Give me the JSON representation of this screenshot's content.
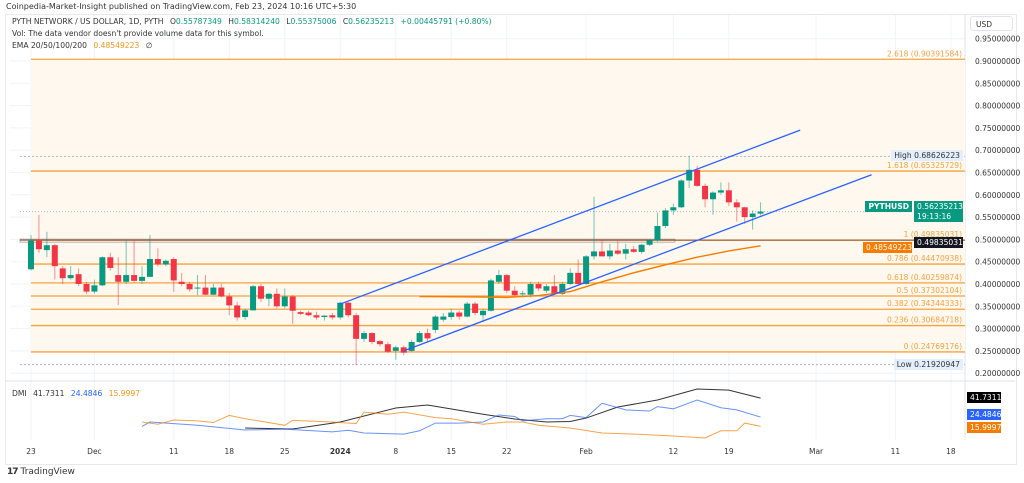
{
  "publisher_line": "Coinpedia-Market-Insight published on TradingView.com, Feb 23, 2024 10:16 UTC+5:30",
  "legend": {
    "symbol": "PYTH NETWORK / US DOLLAR, 1D, PYTH",
    "open_label": "O",
    "open": "0.55787349",
    "high_label": "H",
    "high": "0.58314240",
    "low_label": "L",
    "low": "0.55375006",
    "close_label": "C",
    "close": "0.56235213",
    "change": "+0.00445791 (+0.80%)",
    "vol_note": "Vol: The data vendor doesn't provide volume data for this symbol.",
    "ema_label": "EMA 20/50/100/200",
    "ema_value": "0.48549223",
    "ema_extra": "∅"
  },
  "currency_button": "USD",
  "price_tags": {
    "high_label": "High",
    "high_value": "0.68626223",
    "symbol": "PYTHUSD",
    "last_price": "0.56235213",
    "countdown": "19:13:16",
    "level_line": "0.49835031",
    "ema": "0.48549223",
    "low_label": "Low",
    "low_value": "0.21920947"
  },
  "dmi": {
    "label": "DMI",
    "adx": "41.7311",
    "plus_di": "24.4846",
    "minus_di": "15.9997"
  },
  "colors": {
    "up": "#089981",
    "down": "#f23645",
    "fib": "#f7a13e",
    "channel": "#2962ff",
    "ema": "#f57c00",
    "adx": "#000000",
    "plus_di": "#2962ff",
    "minus_di": "#f57c00"
  },
  "branding": "TradingView",
  "chart_data": {
    "type": "candlestick",
    "symbol": "PYTHUSD",
    "interval": "1D",
    "first_date": "2023-11-23",
    "ylim": [
      0.19,
      0.96
    ],
    "grid": true,
    "y_ticks": [
      "0.95000000",
      "0.90000000",
      "0.85000000",
      "0.80000000",
      "0.75000000",
      "0.70000000",
      "0.65000000",
      "0.60000000",
      "0.55000000",
      "0.50000000",
      "0.45000000",
      "0.40000000",
      "0.35000000",
      "0.30000000",
      "0.25000000",
      "0.20000000"
    ],
    "x_ticks": [
      {
        "label": "23",
        "date": "2023-11-23"
      },
      {
        "label": "Dec",
        "date": "2023-12-01"
      },
      {
        "label": "11",
        "date": "2023-12-11"
      },
      {
        "label": "18",
        "date": "2023-12-18"
      },
      {
        "label": "25",
        "date": "2023-12-25"
      },
      {
        "label": "2024",
        "date": "2024-01-01",
        "bold": true
      },
      {
        "label": "8",
        "date": "2024-01-08"
      },
      {
        "label": "15",
        "date": "2024-01-15"
      },
      {
        "label": "22",
        "date": "2024-01-22"
      },
      {
        "label": "Feb",
        "date": "2024-02-01"
      },
      {
        "label": "12",
        "date": "2024-02-12"
      },
      {
        "label": "19",
        "date": "2024-02-19"
      },
      {
        "label": "Mar",
        "date": "2024-03-01"
      },
      {
        "label": "11",
        "date": "2024-03-11"
      },
      {
        "label": "18",
        "date": "2024-03-18"
      }
    ],
    "ohlc": [
      [
        0.433,
        0.51,
        0.43,
        0.497
      ],
      [
        0.497,
        0.555,
        0.47,
        0.478
      ],
      [
        0.476,
        0.517,
        0.46,
        0.487
      ],
      [
        0.487,
        0.49,
        0.41,
        0.44
      ],
      [
        0.435,
        0.44,
        0.4,
        0.413
      ],
      [
        0.413,
        0.44,
        0.41,
        0.42
      ],
      [
        0.422,
        0.435,
        0.395,
        0.4
      ],
      [
        0.4,
        0.405,
        0.378,
        0.383
      ],
      [
        0.383,
        0.41,
        0.378,
        0.397
      ],
      [
        0.397,
        0.462,
        0.395,
        0.46
      ],
      [
        0.46,
        0.47,
        0.43,
        0.436
      ],
      [
        0.42,
        0.46,
        0.353,
        0.405
      ],
      [
        0.405,
        0.5,
        0.4,
        0.42
      ],
      [
        0.42,
        0.5,
        0.405,
        0.407
      ],
      [
        0.407,
        0.44,
        0.4,
        0.416
      ],
      [
        0.416,
        0.51,
        0.416,
        0.456
      ],
      [
        0.456,
        0.48,
        0.44,
        0.444
      ],
      [
        0.444,
        0.455,
        0.44,
        0.452
      ],
      [
        0.456,
        0.46,
        0.382,
        0.408
      ],
      [
        0.405,
        0.425,
        0.395,
        0.4
      ],
      [
        0.4,
        0.405,
        0.383,
        0.388
      ],
      [
        0.39,
        0.42,
        0.375,
        0.392
      ],
      [
        0.392,
        0.42,
        0.375,
        0.376
      ],
      [
        0.376,
        0.4,
        0.375,
        0.392
      ],
      [
        0.392,
        0.4,
        0.37,
        0.372
      ],
      [
        0.372,
        0.38,
        0.33,
        0.352
      ],
      [
        0.352,
        0.36,
        0.318,
        0.325
      ],
      [
        0.326,
        0.345,
        0.32,
        0.341
      ],
      [
        0.341,
        0.398,
        0.34,
        0.395
      ],
      [
        0.395,
        0.4,
        0.36,
        0.367
      ],
      [
        0.367,
        0.38,
        0.35,
        0.378
      ],
      [
        0.378,
        0.39,
        0.345,
        0.35
      ],
      [
        0.35,
        0.39,
        0.345,
        0.372
      ],
      [
        0.372,
        0.375,
        0.31,
        0.34
      ],
      [
        0.337,
        0.34,
        0.33,
        0.333
      ],
      [
        0.336,
        0.34,
        0.328,
        0.33
      ],
      [
        0.33,
        0.338,
        0.32,
        0.325
      ],
      [
        0.326,
        0.33,
        0.318,
        0.329
      ],
      [
        0.33,
        0.335,
        0.32,
        0.325
      ],
      [
        0.325,
        0.36,
        0.32,
        0.358
      ],
      [
        0.358,
        0.36,
        0.325,
        0.33
      ],
      [
        0.33,
        0.335,
        0.218,
        0.277
      ],
      [
        0.277,
        0.295,
        0.27,
        0.29
      ],
      [
        0.29,
        0.292,
        0.265,
        0.27
      ],
      [
        0.272,
        0.275,
        0.26,
        0.265
      ],
      [
        0.265,
        0.27,
        0.245,
        0.248
      ],
      [
        0.25,
        0.262,
        0.23,
        0.258
      ],
      [
        0.258,
        0.262,
        0.24,
        0.246
      ],
      [
        0.25,
        0.275,
        0.248,
        0.27
      ],
      [
        0.27,
        0.295,
        0.268,
        0.29
      ],
      [
        0.29,
        0.3,
        0.27,
        0.278
      ],
      [
        0.297,
        0.33,
        0.29,
        0.327
      ],
      [
        0.32,
        0.335,
        0.315,
        0.327
      ],
      [
        0.326,
        0.345,
        0.32,
        0.336
      ],
      [
        0.336,
        0.34,
        0.32,
        0.327
      ],
      [
        0.327,
        0.36,
        0.325,
        0.356
      ],
      [
        0.356,
        0.36,
        0.33,
        0.335
      ],
      [
        0.33,
        0.345,
        0.315,
        0.34
      ],
      [
        0.34,
        0.412,
        0.338,
        0.408
      ],
      [
        0.405,
        0.432,
        0.4,
        0.42
      ],
      [
        0.42,
        0.423,
        0.38,
        0.385
      ],
      [
        0.385,
        0.395,
        0.37,
        0.375
      ],
      [
        0.378,
        0.385,
        0.37,
        0.379
      ],
      [
        0.376,
        0.405,
        0.37,
        0.4
      ],
      [
        0.4,
        0.405,
        0.385,
        0.39
      ],
      [
        0.385,
        0.4,
        0.38,
        0.395
      ],
      [
        0.395,
        0.42,
        0.375,
        0.378
      ],
      [
        0.378,
        0.405,
        0.375,
        0.4
      ],
      [
        0.4,
        0.435,
        0.398,
        0.425
      ],
      [
        0.425,
        0.455,
        0.398,
        0.4
      ],
      [
        0.4,
        0.465,
        0.398,
        0.462
      ],
      [
        0.462,
        0.596,
        0.455,
        0.473
      ],
      [
        0.473,
        0.5,
        0.462,
        0.462
      ],
      [
        0.462,
        0.49,
        0.455,
        0.475
      ],
      [
        0.475,
        0.5,
        0.465,
        0.468
      ],
      [
        0.468,
        0.49,
        0.455,
        0.478
      ],
      [
        0.478,
        0.485,
        0.47,
        0.472
      ],
      [
        0.472,
        0.49,
        0.468,
        0.488
      ],
      [
        0.488,
        0.5,
        0.485,
        0.498
      ],
      [
        0.498,
        0.56,
        0.495,
        0.53
      ],
      [
        0.53,
        0.57,
        0.525,
        0.565
      ],
      [
        0.565,
        0.58,
        0.555,
        0.572
      ],
      [
        0.572,
        0.635,
        0.57,
        0.632
      ],
      [
        0.632,
        0.686,
        0.615,
        0.656
      ],
      [
        0.656,
        0.665,
        0.618,
        0.62
      ],
      [
        0.62,
        0.625,
        0.572,
        0.59
      ],
      [
        0.59,
        0.608,
        0.555,
        0.605
      ],
      [
        0.605,
        0.628,
        0.6,
        0.61
      ],
      [
        0.61,
        0.628,
        0.575,
        0.583
      ],
      [
        0.583,
        0.59,
        0.54,
        0.572
      ],
      [
        0.572,
        0.573,
        0.535,
        0.55
      ],
      [
        0.55,
        0.565,
        0.522,
        0.558
      ],
      [
        0.55787349,
        0.5831424,
        0.55375006,
        0.56235213
      ]
    ],
    "ema": [
      [
        "2024-01-11",
        0.372
      ],
      [
        "2024-01-18",
        0.371
      ],
      [
        "2024-01-22",
        0.37
      ],
      [
        "2024-01-26",
        0.374
      ],
      [
        "2024-01-30",
        0.383
      ],
      [
        "2024-02-03",
        0.405
      ],
      [
        "2024-02-07",
        0.425
      ],
      [
        "2024-02-11",
        0.443
      ],
      [
        "2024-02-15",
        0.46
      ],
      [
        "2024-02-19",
        0.474
      ],
      [
        "2024-02-23",
        0.48549223
      ]
    ],
    "fib_levels": [
      {
        "label": "2.618 (0.90391584)",
        "value": 0.90391584
      },
      {
        "label": "1.618 (0.65325729)",
        "value": 0.65325729
      },
      {
        "label": "1 (0.49835031)",
        "value": 0.49835031
      },
      {
        "label": "0.786 (0.44470938)",
        "value": 0.44470938
      },
      {
        "label": "0.618 (0.40259874)",
        "value": 0.40259874
      },
      {
        "label": "0.5 (0.37302104)",
        "value": 0.37302104
      },
      {
        "label": "0.382 (0.34344333)",
        "value": 0.34344333
      },
      {
        "label": "0.236 (0.30684718)",
        "value": 0.30684718
      },
      {
        "label": "0 (0.24769176)",
        "value": 0.24769176
      }
    ],
    "channel": {
      "upper": [
        [
          "2024-01-01",
          0.355
        ],
        [
          "2024-02-28",
          0.745
        ]
      ],
      "lower": [
        [
          "2024-01-09",
          0.25
        ],
        [
          "2024-03-08",
          0.645
        ]
      ]
    },
    "high": 0.68626223,
    "low": 0.21920947,
    "dmi_series": {
      "adx": [
        [
          "2023-12-20",
          14.5
        ],
        [
          "2023-12-26",
          13.6
        ],
        [
          "2024-01-01",
          20
        ],
        [
          "2024-01-08",
          32.7
        ],
        [
          "2024-01-12",
          35.5
        ],
        [
          "2024-01-19",
          27
        ],
        [
          "2024-01-23",
          22.7
        ],
        [
          "2024-01-27",
          20
        ],
        [
          "2024-01-30",
          20.5
        ],
        [
          "2024-02-01",
          23.6
        ],
        [
          "2024-02-05",
          33.6
        ],
        [
          "2024-02-10",
          40
        ],
        [
          "2024-02-15",
          50
        ],
        [
          "2024-02-19",
          49
        ],
        [
          "2024-02-23",
          41.7311
        ]
      ],
      "plus_di": [
        [
          "2023-12-07",
          16
        ],
        [
          "2023-12-08",
          20
        ],
        [
          "2023-12-14",
          17
        ],
        [
          "2023-12-20",
          12.7
        ],
        [
          "2023-12-25",
          13.5
        ],
        [
          "2023-12-31",
          11
        ],
        [
          "2024-01-02",
          12.5
        ],
        [
          "2024-01-04",
          10
        ],
        [
          "2024-01-09",
          9
        ],
        [
          "2024-01-11",
          12
        ],
        [
          "2024-01-13",
          19
        ],
        [
          "2024-01-16",
          19
        ],
        [
          "2024-01-19",
          20
        ],
        [
          "2024-01-21",
          26.4
        ],
        [
          "2024-01-23",
          25
        ],
        [
          "2024-01-24",
          21
        ],
        [
          "2024-01-27",
          23
        ],
        [
          "2024-01-29",
          23
        ],
        [
          "2024-01-30",
          26
        ],
        [
          "2024-02-01",
          24
        ],
        [
          "2024-02-03",
          37
        ],
        [
          "2024-02-06",
          31
        ],
        [
          "2024-02-09",
          30
        ],
        [
          "2024-02-10",
          34
        ],
        [
          "2024-02-12",
          32
        ],
        [
          "2024-02-15",
          40
        ],
        [
          "2024-02-18",
          33
        ],
        [
          "2024-02-20",
          31
        ],
        [
          "2024-02-23",
          24.4846
        ]
      ],
      "minus_di": [
        [
          "2023-12-07",
          20
        ],
        [
          "2023-12-09",
          18
        ],
        [
          "2023-12-11",
          21.8
        ],
        [
          "2023-12-14",
          21
        ],
        [
          "2023-12-16",
          19.5
        ],
        [
          "2023-12-18",
          26
        ],
        [
          "2023-12-20",
          23
        ],
        [
          "2023-12-25",
          17
        ],
        [
          "2023-12-26",
          21.5
        ],
        [
          "2023-12-31",
          20
        ],
        [
          "2024-01-03",
          18.5
        ],
        [
          "2024-01-04",
          29
        ],
        [
          "2024-01-07",
          27
        ],
        [
          "2024-01-09",
          29
        ],
        [
          "2024-01-13",
          24
        ],
        [
          "2024-01-15",
          23
        ],
        [
          "2024-01-19",
          18
        ],
        [
          "2024-01-22",
          20
        ],
        [
          "2024-01-24",
          20
        ],
        [
          "2024-01-26",
          17
        ],
        [
          "2024-01-30",
          14.5
        ],
        [
          "2024-02-03",
          10
        ],
        [
          "2024-02-07",
          9
        ],
        [
          "2024-02-12",
          7.3
        ],
        [
          "2024-02-16",
          5.5
        ],
        [
          "2024-02-18",
          12
        ],
        [
          "2024-02-20",
          12
        ],
        [
          "2024-02-21",
          19
        ],
        [
          "2024-02-23",
          15.9997
        ]
      ]
    }
  }
}
